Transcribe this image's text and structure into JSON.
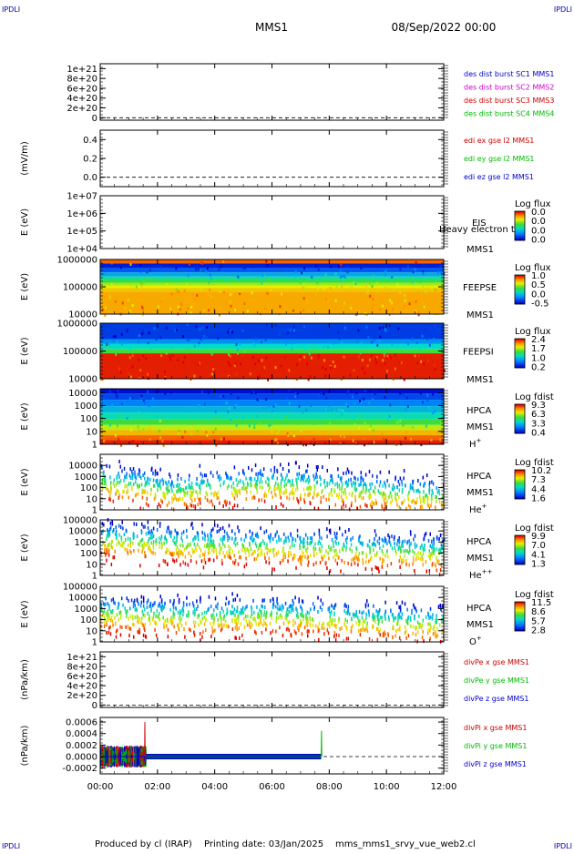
{
  "header": {
    "corner_label": "IPDLI",
    "mission": "MMS1",
    "date": "08/Sep/2022 00:00"
  },
  "footer": {
    "produced_by": "Produced by cl (IRAP)",
    "printing_date": "Printing date: 03/Jan/2025",
    "filename": "mms_mms1_srvy_vue_web2.cl"
  },
  "chart_data": {
    "type": "line",
    "x_axis": {
      "ticks": [
        "00:00",
        "02:00",
        "04:00",
        "06:00",
        "08:00",
        "10:00",
        "12:00"
      ],
      "range_hours": [
        0,
        12
      ]
    },
    "panels": [
      {
        "id": "des-dist",
        "kind": "line",
        "ylabel": "",
        "yticks": [
          "1e+21",
          "8e+20",
          "6e+20",
          "4e+20",
          "2e+20",
          "0"
        ],
        "tick_values": [
          1e+21,
          8e+20,
          6e+20,
          4e+20,
          2e+20,
          0
        ],
        "ylim": [
          -5e+19,
          1.1e+21
        ],
        "zero_line": true,
        "series": [
          {
            "name": "des dist burst SC1 MMS1",
            "color": "#0000cc"
          },
          {
            "name": "des dist burst SC2 MMS2",
            "color": "#cc00cc"
          },
          {
            "name": "des dist burst SC3 MMS3",
            "color": "#cc0000"
          },
          {
            "name": "des dist burst SC4 MMS4",
            "color": "#00bb00"
          }
        ]
      },
      {
        "id": "edi-e",
        "kind": "line",
        "ylabel": "(mV/m)",
        "yticks": [
          "0.4",
          "0.2",
          "0.0"
        ],
        "tick_values": [
          0.4,
          0.2,
          0.0
        ],
        "ylim": [
          -0.1,
          0.5
        ],
        "zero_line": true,
        "series": [
          {
            "name": "edi ex gse l2 MMS1",
            "color": "#cc0000"
          },
          {
            "name": "edi ey gse l2 MMS1",
            "color": "#00bb00"
          },
          {
            "name": "edi ez gse l2 MMS1",
            "color": "#0000cc"
          }
        ]
      },
      {
        "id": "eis",
        "kind": "spectrogram",
        "ylabel": "E (eV)",
        "yticks": [
          "1e+07",
          "1e+06",
          "1e+05",
          "1e+04"
        ],
        "log_ylim": [
          4,
          7
        ],
        "instrument": "EIS",
        "spacecraft": "MMS1",
        "overlay_text": "Heavy electron tof",
        "colorbar": {
          "title": "Log flux",
          "labels": [
            "0.0",
            "0.0",
            "0.0",
            "0.0"
          ]
        },
        "data": {
          "mode": "empty"
        }
      },
      {
        "id": "feepse",
        "kind": "spectrogram",
        "ylabel": "E (eV)",
        "yticks": [
          "1000000",
          "100000",
          "10000"
        ],
        "log_ylim": [
          4,
          6
        ],
        "instrument": "FEEPSE",
        "spacecraft": "MMS1",
        "colorbar": {
          "title": "Log flux",
          "labels": [
            "1.0",
            "0.5",
            "0.0",
            "-0.5"
          ]
        },
        "data": {
          "mode": "band",
          "t_end_hours": 12,
          "levels": [
            [
              5.9,
              0.9
            ],
            [
              5.8,
              0.05
            ],
            [
              5.6,
              0.15
            ],
            [
              5.45,
              0.3
            ],
            [
              5.3,
              0.45
            ],
            [
              5.2,
              0.55
            ],
            [
              5.1,
              0.65
            ],
            [
              5.0,
              0.72
            ],
            [
              4.9,
              0.78
            ],
            [
              4.75,
              0.82
            ]
          ]
        }
      },
      {
        "id": "feepsi",
        "kind": "spectrogram",
        "ylabel": "E (eV)",
        "yticks": [
          "1000000",
          "100000",
          "10000"
        ],
        "log_ylim": [
          4,
          6
        ],
        "instrument": "FEEPSI",
        "spacecraft": "MMS1",
        "colorbar": {
          "title": "Log flux",
          "labels": [
            "2.4",
            "1.7",
            "1.0",
            "0.2"
          ]
        },
        "data": {
          "mode": "band",
          "t_end_hours": 12,
          "levels": [
            [
              5.5,
              0.1
            ],
            [
              5.35,
              0.25
            ],
            [
              5.15,
              0.4
            ],
            [
              5.0,
              0.55
            ],
            [
              4.83,
              0.97
            ]
          ]
        }
      },
      {
        "id": "hpca-h",
        "kind": "spectrogram",
        "ylabel": "E (eV)",
        "yticks": [
          "10000",
          "1000",
          "100",
          "10",
          "1"
        ],
        "log_ylim": [
          0,
          4.3
        ],
        "instrument": "HPCA",
        "spacecraft": "MMS1",
        "species": "H",
        "species_charge": "+",
        "colorbar": {
          "title": "Log fdist",
          "labels": [
            "9.3",
            "6.3",
            "3.3",
            "0.4"
          ]
        },
        "data": {
          "mode": "band",
          "t_end_hours": 12,
          "levels": [
            [
              4.15,
              0.02
            ],
            [
              3.7,
              0.12
            ],
            [
              3.2,
              0.22
            ],
            [
              2.7,
              0.32
            ],
            [
              2.2,
              0.42
            ],
            [
              1.7,
              0.55
            ],
            [
              1.3,
              0.68
            ],
            [
              0.9,
              0.8
            ],
            [
              0.5,
              0.9
            ],
            [
              0.15,
              0.97
            ]
          ]
        }
      },
      {
        "id": "hpca-he",
        "kind": "spectrogram",
        "ylabel": "E (eV)",
        "yticks": [
          "10000",
          "1000",
          "100",
          "10",
          "1"
        ],
        "log_ylim": [
          0,
          5
        ],
        "instrument": "HPCA",
        "spacecraft": "MMS1",
        "species": "He",
        "species_charge": "+",
        "colorbar": {
          "title": "Log fdist",
          "labels": [
            "10.2",
            "7.3",
            "4.4",
            "1.6"
          ]
        },
        "data": {
          "mode": "sparse",
          "t_end_hours": 12,
          "center": [
            [
              0,
              2.5
            ],
            [
              1.5,
              2.1
            ],
            [
              2.5,
              1.6
            ],
            [
              4,
              2.0
            ],
            [
              6,
              2.3
            ],
            [
              7.5,
              2.1
            ],
            [
              9,
              1.7
            ],
            [
              10.5,
              1.4
            ],
            [
              12,
              1.1
            ]
          ]
        }
      },
      {
        "id": "hpca-he2",
        "kind": "spectrogram",
        "ylabel": "E (eV)",
        "yticks": [
          "100000",
          "10000",
          "1000",
          "100",
          "10",
          "1"
        ],
        "log_ylim": [
          0,
          5
        ],
        "instrument": "HPCA",
        "spacecraft": "MMS1",
        "species": "He",
        "species_charge": "++",
        "colorbar": {
          "title": "Log fdist",
          "labels": [
            "9.9",
            "7.0",
            "4.1",
            "1.3"
          ]
        },
        "data": {
          "mode": "sparse",
          "t_end_hours": 12,
          "center": [
            [
              0,
              3.2
            ],
            [
              1.5,
              3.0
            ],
            [
              3,
              2.8
            ],
            [
              5,
              2.6
            ],
            [
              7,
              2.5
            ],
            [
              9,
              2.3
            ],
            [
              12,
              2.0
            ]
          ]
        }
      },
      {
        "id": "hpca-o",
        "kind": "spectrogram",
        "ylabel": "E (eV)",
        "yticks": [
          "100000",
          "10000",
          "1000",
          "100",
          "10",
          "1"
        ],
        "log_ylim": [
          0,
          5
        ],
        "instrument": "HPCA",
        "spacecraft": "MMS1",
        "species": "O",
        "species_charge": "+",
        "colorbar": {
          "title": "Log fdist",
          "labels": [
            "11.5",
            "8.6",
            "5.7",
            "2.8"
          ]
        },
        "data": {
          "mode": "sparse",
          "t_end_hours": 12,
          "center": [
            [
              0,
              2.6
            ],
            [
              2,
              2.3
            ],
            [
              4,
              2.2
            ],
            [
              6,
              2.4
            ],
            [
              8,
              2.1
            ],
            [
              10,
              1.8
            ],
            [
              12,
              1.6
            ]
          ]
        }
      },
      {
        "id": "divpe",
        "kind": "line",
        "ylabel": "(nPa/km)",
        "yticks": [
          "1e+21",
          "8e+20",
          "6e+20",
          "4e+20",
          "2e+20",
          "0"
        ],
        "tick_values": [
          1e+21,
          8e+20,
          6e+20,
          4e+20,
          2e+20,
          0
        ],
        "ylim": [
          -5e+19,
          1.1e+21
        ],
        "zero_line": true,
        "series": [
          {
            "name": "divPe x gse MMS1",
            "color": "#cc0000"
          },
          {
            "name": "divPe y gse MMS1",
            "color": "#00bb00"
          },
          {
            "name": "divPe z gse MMS1",
            "color": "#0000cc"
          }
        ]
      },
      {
        "id": "divpi",
        "kind": "line",
        "ylabel": "(nPa/km)",
        "yticks": [
          "0.0006",
          "0.0004",
          "0.0002",
          "0.0000",
          "-0.0002"
        ],
        "tick_values": [
          0.0006,
          0.0004,
          0.0002,
          0.0,
          -0.0002
        ],
        "ylim": [
          -0.0003,
          0.00068
        ],
        "zero_line": true,
        "series": [
          {
            "name": "divPi x gse MMS1",
            "color": "#cc0000",
            "points": [
              [
                0,
                0.0
              ],
              [
                1.0,
                0.0
              ],
              [
                1.55,
                0.0
              ],
              [
                1.56,
                0.0006
              ],
              [
                1.57,
                0.0
              ],
              [
                7.7,
                0.0
              ]
            ]
          },
          {
            "name": "divPi y gse MMS1",
            "color": "#00bb00",
            "points": [
              [
                0,
                0.0
              ],
              [
                1.5,
                0.0
              ],
              [
                7.6,
                0.0
              ],
              [
                7.72,
                0.0
              ],
              [
                7.73,
                0.00045
              ],
              [
                7.74,
                0.0
              ]
            ]
          },
          {
            "name": "divPi z gse MMS1",
            "color": "#0000cc",
            "points": [
              [
                0,
                0.0
              ],
              [
                1.6,
                0.0
              ],
              [
                7.7,
                0.0
              ]
            ]
          }
        ],
        "noise_until_hours": 1.6,
        "data_end_hours": 7.72
      }
    ]
  }
}
